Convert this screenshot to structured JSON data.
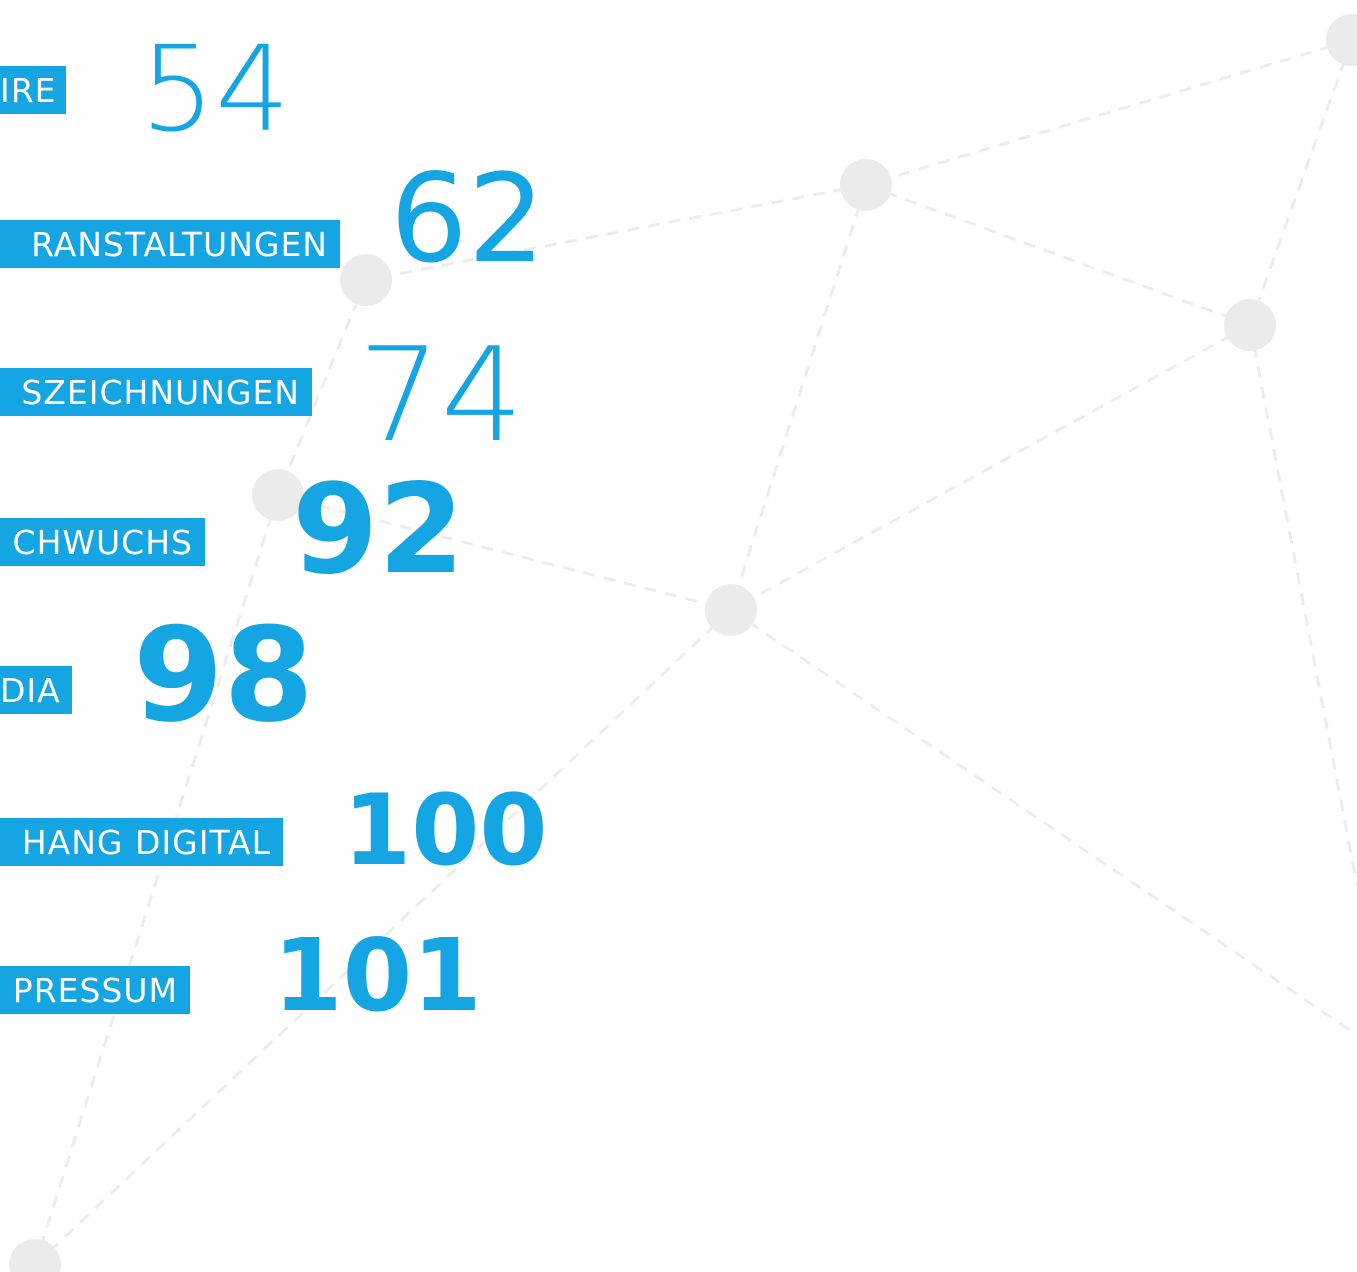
{
  "toc": {
    "entries": [
      {
        "label": "IRE",
        "page": "54"
      },
      {
        "label": "RANSTALTUNGEN",
        "page": "62"
      },
      {
        "label": "SZEICHNUNGEN",
        "page": "74"
      },
      {
        "label": "CHWUCHS",
        "page": "92"
      },
      {
        "label": "DIA",
        "page": "98"
      },
      {
        "label": "HANG DIGITAL",
        "page": "100"
      },
      {
        "label": "PRESSUM",
        "page": "101"
      }
    ]
  }
}
